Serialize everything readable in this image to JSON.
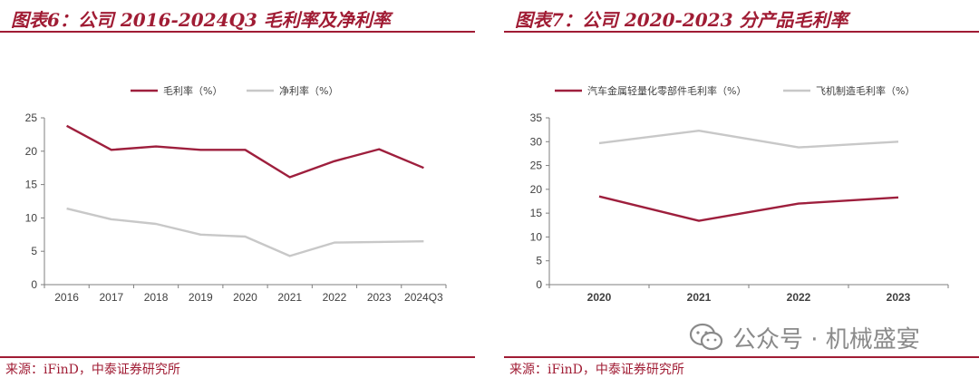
{
  "left": {
    "title": "图表6：公司 2016-2024Q3 毛利率及净利率",
    "source": "来源：iFinD，中泰证券研究所",
    "chart_data": {
      "type": "line",
      "categories": [
        "2016",
        "2017",
        "2018",
        "2019",
        "2020",
        "2021",
        "2022",
        "2023",
        "2024Q3"
      ],
      "series": [
        {
          "name": "毛利率（%）",
          "color": "#9e1f3d",
          "values": [
            23.8,
            20.2,
            20.7,
            20.2,
            20.2,
            16.1,
            18.5,
            20.3,
            17.5
          ]
        },
        {
          "name": "净利率（%）",
          "color": "#c8c8c8",
          "values": [
            11.4,
            9.8,
            9.1,
            7.5,
            7.2,
            4.3,
            6.3,
            6.4,
            6.5
          ]
        }
      ],
      "ylim": [
        0,
        25
      ],
      "yticks": [
        0,
        5,
        10,
        15,
        20,
        25
      ],
      "legend_position": "top-center",
      "grid": false
    }
  },
  "right": {
    "title": "图表7：公司 2020-2023 分产品毛利率",
    "source": "来源：iFinD，中泰证券研究所",
    "chart_data": {
      "type": "line",
      "categories": [
        "2020",
        "2021",
        "2022",
        "2023"
      ],
      "series": [
        {
          "name": "汽车金属轻量化零部件毛利率（%）",
          "color": "#9e1f3d",
          "values": [
            18.5,
            13.4,
            17.0,
            18.3
          ]
        },
        {
          "name": "飞机制造毛利率（%）",
          "color": "#c8c8c8",
          "values": [
            29.7,
            32.3,
            28.8,
            30.0
          ]
        }
      ],
      "ylim": [
        0,
        35
      ],
      "yticks": [
        0,
        5,
        10,
        15,
        20,
        25,
        30,
        35
      ],
      "legend_position": "top-center",
      "grid": false
    }
  },
  "watermark": {
    "text": "公众号 · 机械盛宴",
    "icon": "wechat-icon"
  }
}
